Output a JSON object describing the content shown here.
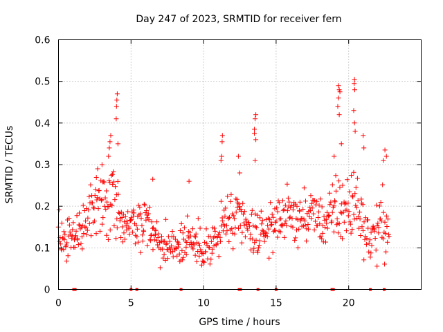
{
  "chart_data": {
    "type": "scatter",
    "title": "Day 247 of 2023, SRMTID for receiver fern",
    "xlabel": "GPS time / hours",
    "ylabel": "SRMTID / TECUs",
    "xlim": [
      0,
      25
    ],
    "ylim": [
      0,
      0.6
    ],
    "xticks": [
      0,
      5,
      10,
      15,
      20
    ],
    "xtick_labels": [
      "0",
      "5",
      "10",
      "15",
      "20"
    ],
    "yticks": [
      0,
      0.1,
      0.2,
      0.3,
      0.4,
      0.5,
      0.6
    ],
    "ytick_labels": [
      "0",
      "0.1",
      "0.2",
      "0.3",
      "0.4",
      "0.5",
      "0.6"
    ],
    "grid": true,
    "marker": "+",
    "series_color": "#ff0000",
    "zero_markers_x": [
      1.05,
      1.15,
      5.0,
      5.4,
      8.45,
      12.45,
      12.55,
      13.75,
      15.0,
      18.85,
      18.95,
      21.5,
      22.45
    ],
    "envelope": [
      [
        0.0,
        0.14,
        0.07
      ],
      [
        0.5,
        0.12,
        0.05
      ],
      [
        1.0,
        0.12,
        0.04
      ],
      [
        1.5,
        0.14,
        0.05
      ],
      [
        2.0,
        0.16,
        0.05
      ],
      [
        2.5,
        0.2,
        0.06
      ],
      [
        3.0,
        0.22,
        0.06
      ],
      [
        3.5,
        0.22,
        0.07
      ],
      [
        4.0,
        0.2,
        0.08
      ],
      [
        4.5,
        0.16,
        0.06
      ],
      [
        5.0,
        0.14,
        0.05
      ],
      [
        5.5,
        0.16,
        0.05
      ],
      [
        6.0,
        0.17,
        0.05
      ],
      [
        6.5,
        0.13,
        0.05
      ],
      [
        7.0,
        0.11,
        0.04
      ],
      [
        7.5,
        0.11,
        0.04
      ],
      [
        8.0,
        0.12,
        0.05
      ],
      [
        8.5,
        0.11,
        0.05
      ],
      [
        9.0,
        0.13,
        0.05
      ],
      [
        9.5,
        0.11,
        0.04
      ],
      [
        10.0,
        0.1,
        0.04
      ],
      [
        10.5,
        0.1,
        0.04
      ],
      [
        11.0,
        0.12,
        0.05
      ],
      [
        11.5,
        0.17,
        0.07
      ],
      [
        12.0,
        0.15,
        0.06
      ],
      [
        12.5,
        0.17,
        0.06
      ],
      [
        13.0,
        0.14,
        0.05
      ],
      [
        13.5,
        0.14,
        0.06
      ],
      [
        14.0,
        0.13,
        0.05
      ],
      [
        14.5,
        0.15,
        0.05
      ],
      [
        15.0,
        0.16,
        0.05
      ],
      [
        15.5,
        0.18,
        0.05
      ],
      [
        16.0,
        0.18,
        0.05
      ],
      [
        16.5,
        0.17,
        0.05
      ],
      [
        17.0,
        0.17,
        0.05
      ],
      [
        17.5,
        0.18,
        0.05
      ],
      [
        18.0,
        0.17,
        0.05
      ],
      [
        18.5,
        0.16,
        0.05
      ],
      [
        19.0,
        0.18,
        0.07
      ],
      [
        19.5,
        0.2,
        0.08
      ],
      [
        20.0,
        0.19,
        0.07
      ],
      [
        20.5,
        0.21,
        0.08
      ],
      [
        21.0,
        0.16,
        0.06
      ],
      [
        21.5,
        0.12,
        0.05
      ],
      [
        22.0,
        0.14,
        0.06
      ],
      [
        22.5,
        0.17,
        0.07
      ],
      [
        22.8,
        0.12,
        0.05
      ]
    ],
    "spikes": [
      [
        4.05,
        0.47
      ],
      [
        4.02,
        0.455
      ],
      [
        4.0,
        0.44
      ],
      [
        3.98,
        0.41
      ],
      [
        4.1,
        0.35
      ],
      [
        3.6,
        0.37
      ],
      [
        3.55,
        0.355
      ],
      [
        3.5,
        0.34
      ],
      [
        3.45,
        0.32
      ],
      [
        11.3,
        0.37
      ],
      [
        11.28,
        0.355
      ],
      [
        11.25,
        0.32
      ],
      [
        11.2,
        0.31
      ],
      [
        13.6,
        0.42
      ],
      [
        13.55,
        0.41
      ],
      [
        13.5,
        0.385
      ],
      [
        13.5,
        0.375
      ],
      [
        13.6,
        0.36
      ],
      [
        13.55,
        0.31
      ],
      [
        19.3,
        0.49
      ],
      [
        19.35,
        0.48
      ],
      [
        19.4,
        0.475
      ],
      [
        19.3,
        0.46
      ],
      [
        19.25,
        0.44
      ],
      [
        19.35,
        0.42
      ],
      [
        20.4,
        0.505
      ],
      [
        20.38,
        0.495
      ],
      [
        20.42,
        0.48
      ],
      [
        20.35,
        0.43
      ],
      [
        20.4,
        0.4
      ],
      [
        20.45,
        0.38
      ],
      [
        19.0,
        0.32
      ],
      [
        19.5,
        0.35
      ],
      [
        21.0,
        0.37
      ],
      [
        21.05,
        0.34
      ],
      [
        22.5,
        0.335
      ],
      [
        22.6,
        0.32
      ],
      [
        22.4,
        0.31
      ],
      [
        12.4,
        0.32
      ],
      [
        12.5,
        0.28
      ],
      [
        2.7,
        0.29
      ],
      [
        3.0,
        0.3
      ],
      [
        9.0,
        0.26
      ],
      [
        6.5,
        0.265
      ]
    ]
  }
}
